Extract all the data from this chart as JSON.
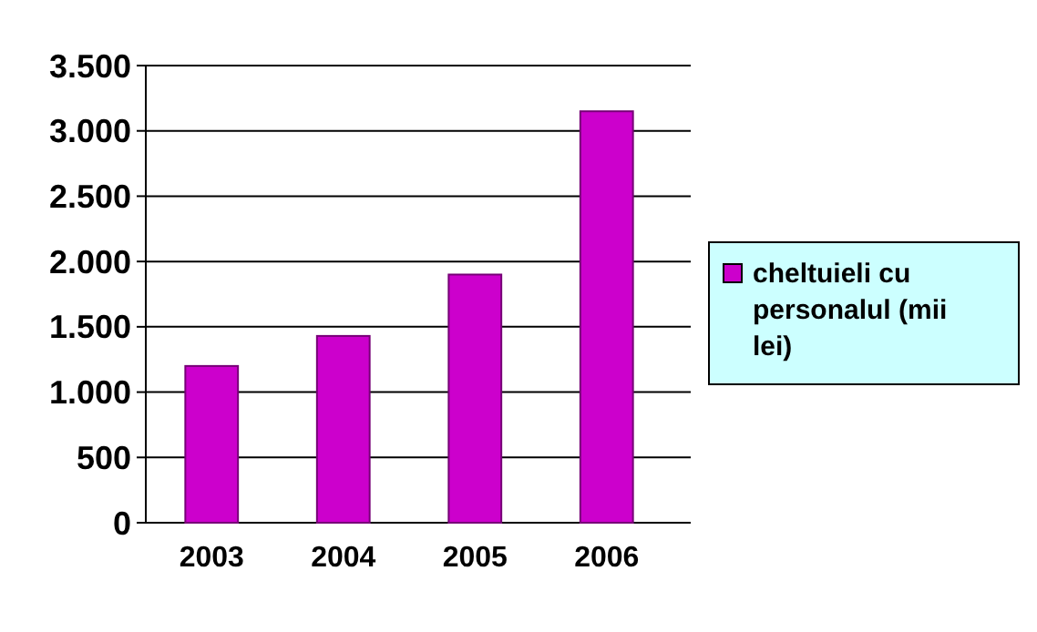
{
  "chart_data": {
    "type": "bar",
    "categories": [
      "2003",
      "2004",
      "2005",
      "2006"
    ],
    "series": [
      {
        "name": "cheltuieli cu personalul (mii lei)",
        "color": "#cc00cc",
        "values": [
          1200,
          1430,
          1900,
          3150
        ]
      }
    ],
    "ylim": [
      0,
      3500
    ],
    "yticks": [
      {
        "value": 0,
        "label": "0"
      },
      {
        "value": 500,
        "label": "500"
      },
      {
        "value": 1000,
        "label": "1.000"
      },
      {
        "value": 1500,
        "label": "1.500"
      },
      {
        "value": 2000,
        "label": "2.000"
      },
      {
        "value": 2500,
        "label": "2.500"
      },
      {
        "value": 3000,
        "label": "3.000"
      },
      {
        "value": 3500,
        "label": "3.500"
      }
    ],
    "grid": "y",
    "legend": "right"
  }
}
